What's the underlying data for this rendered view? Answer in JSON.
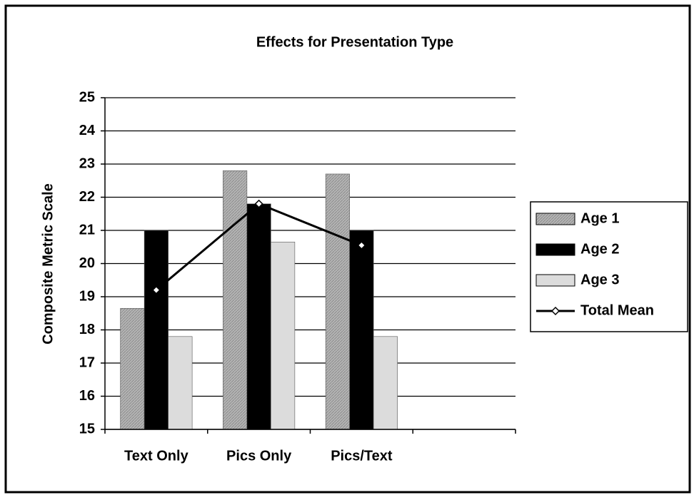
{
  "chart_data": {
    "type": "bar",
    "title": "Effects for Presentation Type",
    "y_label": "Composite Metric Scale",
    "categories": [
      "Text Only",
      "Pics Only",
      "Pics/Text",
      null
    ],
    "series": [
      {
        "name": "Age 1",
        "color": "#a9a9a9",
        "values": [
          18.65,
          22.8,
          22.7,
          null
        ]
      },
      {
        "name": "Age 2",
        "color": "#000000",
        "values": [
          21.0,
          21.8,
          21.0,
          null
        ]
      },
      {
        "name": "Age 3",
        "color": "#dcdcdc",
        "values": [
          17.8,
          20.65,
          17.8,
          null
        ]
      },
      {
        "name": "Total Mean",
        "type": "line",
        "color": "#000000",
        "values": [
          19.2,
          21.8,
          20.55,
          null
        ]
      }
    ],
    "ylim": [
      15,
      25
    ],
    "yticks": [
      15,
      16,
      17,
      18,
      19,
      20,
      21,
      22,
      23,
      24,
      25
    ],
    "grid": true,
    "legend": "right"
  }
}
